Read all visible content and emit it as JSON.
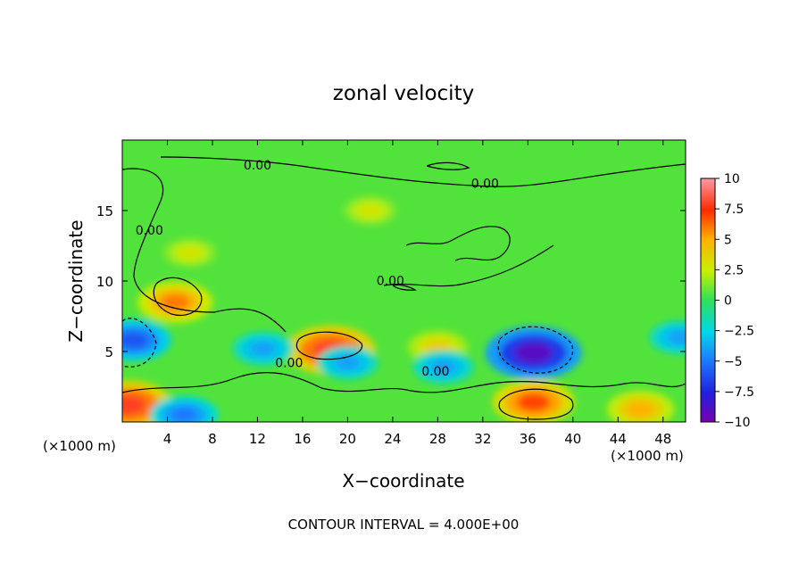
{
  "chart_data": {
    "type": "heatmap",
    "title": "zonal velocity",
    "xlabel": "X−coordinate",
    "ylabel": "Z−coordinate",
    "x_unit": "(×1000 m)",
    "x_unit_right": "(×1000 m)",
    "footer": "CONTOUR INTERVAL = 4.000E+00",
    "xlim": [
      0,
      50
    ],
    "ylim": [
      0,
      20
    ],
    "x_ticks": [
      4,
      8,
      12,
      16,
      20,
      24,
      28,
      32,
      36,
      40,
      44,
      48
    ],
    "y_ticks": [
      5,
      10,
      15
    ],
    "colorbar": {
      "min": -10,
      "max": 10,
      "ticks": [
        10,
        7.5,
        5,
        2.5,
        0,
        -2.5,
        -5,
        -7.5,
        -10
      ],
      "tick_labels": [
        "10",
        "7.5",
        "5",
        "2.5",
        "0",
        "−2.5",
        "−5",
        "−7.5",
        "−10"
      ]
    },
    "contour_labels": [
      {
        "text": "0.00",
        "x": 12,
        "y": 17.9
      },
      {
        "text": "0.00",
        "x": 32.2,
        "y": 16.6
      },
      {
        "text": "0.00",
        "x": 2.4,
        "y": 13.3
      },
      {
        "text": "0.00",
        "x": 23.8,
        "y": 9.7
      },
      {
        "text": "0.00",
        "x": 14.8,
        "y": 3.9
      },
      {
        "text": "0.00",
        "x": 27.8,
        "y": 3.3
      }
    ],
    "features": [
      {
        "kind": "max",
        "x": 0.5,
        "y": 1.2,
        "value": 8
      },
      {
        "kind": "max",
        "x": 4.7,
        "y": 8.5,
        "value": 6
      },
      {
        "kind": "max",
        "x": 18.5,
        "y": 5.1,
        "value": 8
      },
      {
        "kind": "max",
        "x": 36.5,
        "y": 1.4,
        "value": 7
      },
      {
        "kind": "max",
        "x": 46,
        "y": 0.9,
        "value": 5
      },
      {
        "kind": "max",
        "x": 28,
        "y": 5.3,
        "value": 4
      },
      {
        "kind": "min",
        "x": 1,
        "y": 5.8,
        "value": -6
      },
      {
        "kind": "min",
        "x": 36.5,
        "y": 4.9,
        "value": -9
      },
      {
        "kind": "min",
        "x": 12.5,
        "y": 5.2,
        "value": -4
      },
      {
        "kind": "min",
        "x": 20,
        "y": 4.2,
        "value": -4
      },
      {
        "kind": "min",
        "x": 5.5,
        "y": 0.5,
        "value": -5
      },
      {
        "kind": "min",
        "x": 49.5,
        "y": 6,
        "value": -4
      },
      {
        "kind": "min",
        "x": 28.5,
        "y": 3.9,
        "value": -4
      },
      {
        "kind": "max",
        "x": 22,
        "y": 15,
        "value": 3
      },
      {
        "kind": "max",
        "x": 6,
        "y": 12,
        "value": 3
      }
    ]
  }
}
